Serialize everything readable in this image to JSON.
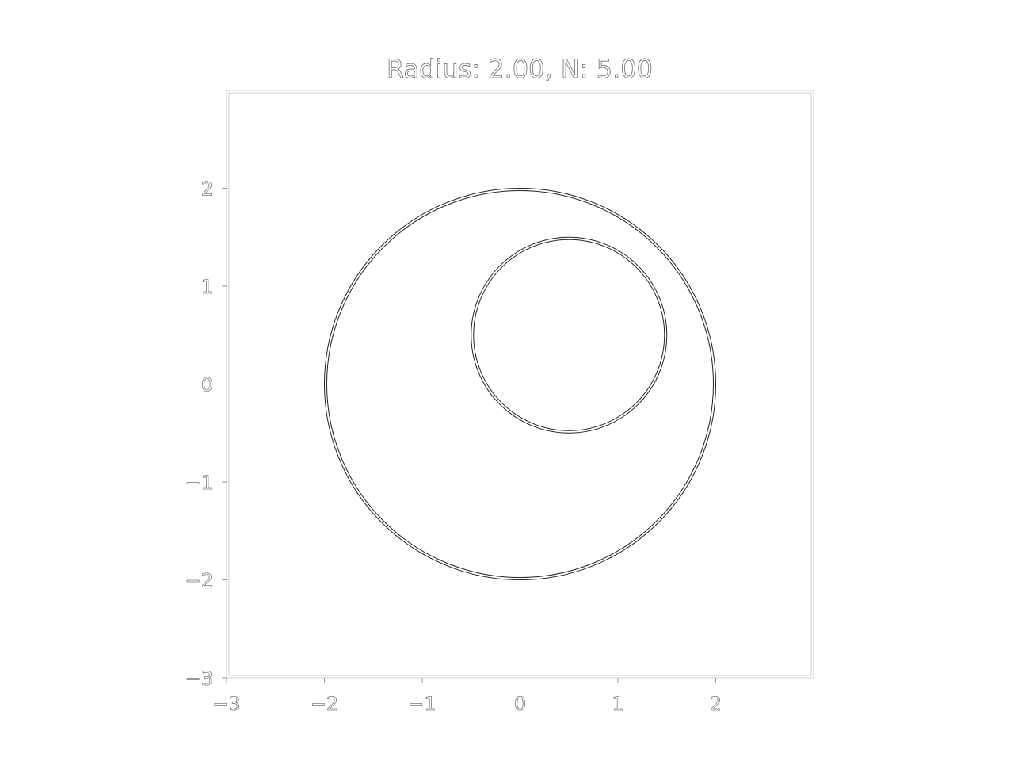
{
  "chart_data": {
    "type": "scatter",
    "title": "Radius: 2.00, N: 5.00",
    "xlabel": "",
    "ylabel": "",
    "xlim": [
      -3,
      3
    ],
    "ylim": [
      -3,
      3
    ],
    "grid": false,
    "x_ticks": [
      -3,
      -2,
      -1,
      0,
      1,
      2
    ],
    "x_tick_labels": [
      "−3",
      "−2",
      "−1",
      "0",
      "1",
      "2"
    ],
    "y_ticks": [
      2,
      1,
      0,
      -1,
      -2,
      -3
    ],
    "y_tick_labels": [
      "2",
      "1",
      "0",
      "−1",
      "−2",
      "−3"
    ],
    "circles": [
      {
        "cx": 0,
        "cy": 0,
        "r": 2.0
      },
      {
        "cx": 0.5,
        "cy": 0.5,
        "r": 1.0
      }
    ]
  }
}
